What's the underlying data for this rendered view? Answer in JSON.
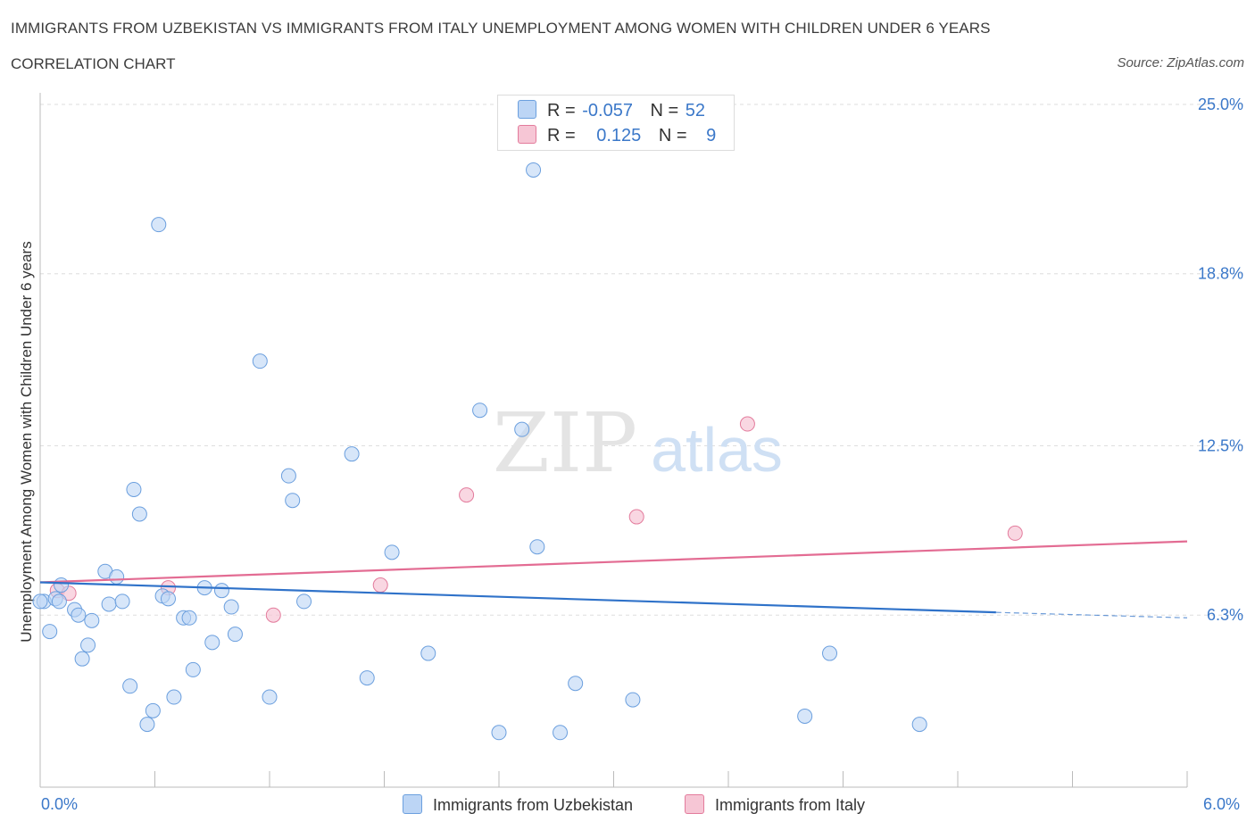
{
  "header": {
    "title": "IMMIGRANTS FROM UZBEKISTAN VS IMMIGRANTS FROM ITALY UNEMPLOYMENT AMONG WOMEN WITH CHILDREN UNDER 6 YEARS",
    "subtitle": "CORRELATION CHART",
    "source": "Source: ZipAtlas.com"
  },
  "stats": {
    "r_label": "R =",
    "n_label": "N =",
    "uzbekistan_r": "-0.057",
    "uzbekistan_n": "52",
    "italy_r": "0.125",
    "italy_n": "9"
  },
  "watermark": {
    "zip": "ZIP",
    "atlas": "atlas"
  },
  "colors": {
    "uzbekistan": "#6b9fde",
    "uzbekistan_fill": "#bcd5f5",
    "italy": "#e37b9c",
    "italy_fill": "#f6c6d5",
    "trend_blue": "#2f72c9",
    "trend_pink": "#e36c93",
    "tick_text": "#3b78c9"
  },
  "chart_data": {
    "type": "scatter",
    "title": "IMMIGRANTS FROM UZBEKISTAN VS IMMIGRANTS FROM ITALY UNEMPLOYMENT AMONG WOMEN WITH CHILDREN UNDER 6 YEARS",
    "xlabel": "",
    "ylabel": "Unemployment Among Women with Children Under 6 years",
    "xlim": [
      0,
      6
    ],
    "ylim": [
      0,
      25
    ],
    "x_tick_labels": [
      "0.0%",
      "6.0%"
    ],
    "y_ticks": [
      6.3,
      12.5,
      18.8,
      25.0
    ],
    "y_tick_labels": [
      "6.3%",
      "12.5%",
      "18.8%",
      "25.0%"
    ],
    "grid": true,
    "legend_position": "bottom-center",
    "series": [
      {
        "name": "Immigrants from Uzbekistan",
        "r": -0.057,
        "n": 52,
        "trend": {
          "x": [
            0,
            5.0
          ],
          "y": [
            7.5,
            6.4
          ],
          "dashed_to": [
            6.0,
            6.2
          ]
        },
        "points": [
          [
            0.02,
            6.8
          ],
          [
            0.05,
            5.7
          ],
          [
            0.08,
            6.9
          ],
          [
            0.11,
            7.4
          ],
          [
            0.1,
            6.8
          ],
          [
            0.18,
            6.5
          ],
          [
            0.2,
            6.3
          ],
          [
            0.22,
            4.7
          ],
          [
            0.25,
            5.2
          ],
          [
            0.27,
            6.1
          ],
          [
            0.34,
            7.9
          ],
          [
            0.36,
            6.7
          ],
          [
            0.4,
            7.7
          ],
          [
            0.43,
            6.8
          ],
          [
            0.47,
            3.7
          ],
          [
            0.49,
            10.9
          ],
          [
            0.52,
            10.0
          ],
          [
            0.56,
            2.3
          ],
          [
            0.59,
            2.8
          ],
          [
            0.62,
            20.6
          ],
          [
            0.64,
            7.0
          ],
          [
            0.67,
            6.9
          ],
          [
            0.7,
            3.3
          ],
          [
            0.75,
            6.2
          ],
          [
            0.78,
            6.2
          ],
          [
            0.8,
            4.3
          ],
          [
            0.86,
            7.3
          ],
          [
            0.9,
            5.3
          ],
          [
            0.95,
            7.2
          ],
          [
            1.0,
            6.6
          ],
          [
            1.02,
            5.6
          ],
          [
            1.15,
            15.6
          ],
          [
            1.2,
            3.3
          ],
          [
            1.3,
            11.4
          ],
          [
            1.32,
            10.5
          ],
          [
            1.38,
            6.8
          ],
          [
            1.63,
            12.2
          ],
          [
            1.71,
            4.0
          ],
          [
            1.84,
            8.6
          ],
          [
            2.03,
            4.9
          ],
          [
            2.3,
            13.8
          ],
          [
            2.4,
            2.0
          ],
          [
            2.52,
            13.1
          ],
          [
            2.6,
            8.8
          ],
          [
            2.58,
            22.6
          ],
          [
            2.72,
            2.0
          ],
          [
            2.8,
            3.8
          ],
          [
            3.1,
            3.2
          ],
          [
            4.0,
            2.6
          ],
          [
            4.13,
            4.9
          ],
          [
            4.6,
            2.3
          ],
          [
            0.0,
            6.8
          ]
        ]
      },
      {
        "name": "Immigrants from Italy",
        "r": 0.125,
        "n": 9,
        "trend": {
          "x": [
            0,
            6.0
          ],
          "y": [
            7.5,
            9.0
          ]
        },
        "points": [
          [
            0.09,
            7.2
          ],
          [
            0.15,
            7.1
          ],
          [
            0.67,
            7.3
          ],
          [
            1.22,
            6.3
          ],
          [
            1.78,
            7.4
          ],
          [
            2.23,
            10.7
          ],
          [
            3.12,
            9.9
          ],
          [
            3.7,
            13.3
          ],
          [
            5.1,
            9.3
          ]
        ]
      }
    ]
  },
  "legend": {
    "uzbekistan_label": "Immigrants from Uzbekistan",
    "italy_label": "Immigrants from Italy"
  }
}
